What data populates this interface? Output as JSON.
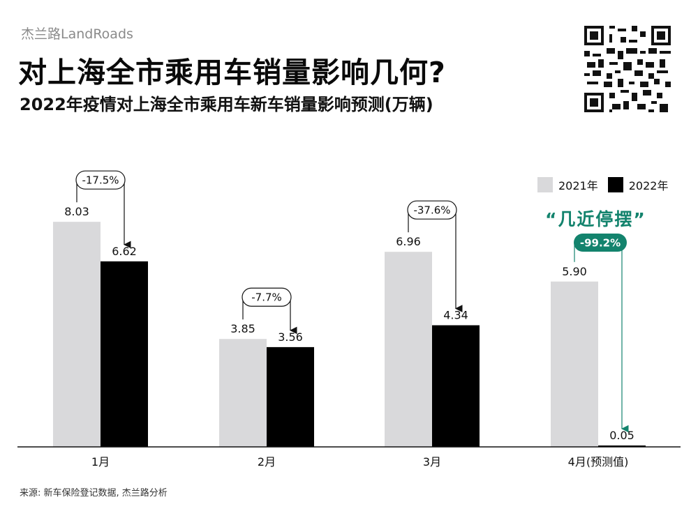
{
  "brand": "杰兰路LandRoads",
  "title": "对上海全市乘用车销量影响几何?",
  "subtitle": "2022年疫情对上海全市乘用车新车销量影响预测(万辆)",
  "source": "来源: 新车保险登记数据, 杰兰路分析",
  "highlight_label": "“几近停摆”",
  "colors": {
    "y2021": "#d9d9db",
    "y2022": "#000000",
    "accent": "#13836d"
  },
  "chart_data": {
    "type": "bar",
    "title": "2022年疫情对上海全市乘用车新车销量影响预测(万辆)",
    "categories": [
      "1月",
      "2月",
      "3月",
      "4月(预测值)"
    ],
    "series": [
      {
        "name": "2021年",
        "values": [
          8.03,
          3.85,
          6.96,
          5.9
        ]
      },
      {
        "name": "2022年",
        "values": [
          6.62,
          3.56,
          4.34,
          0.05
        ]
      }
    ],
    "value_labels_2021": [
      "8.03",
      "3.85",
      "6.96",
      "5.90"
    ],
    "value_labels_2022": [
      "6.62",
      "3.56",
      "4.34",
      "0.05"
    ],
    "changes": [
      "-17.5%",
      "-7.7%",
      "-37.6%",
      "-99.2%"
    ],
    "ylim": [
      0,
      10
    ],
    "grid": false,
    "legend": "top-right"
  }
}
